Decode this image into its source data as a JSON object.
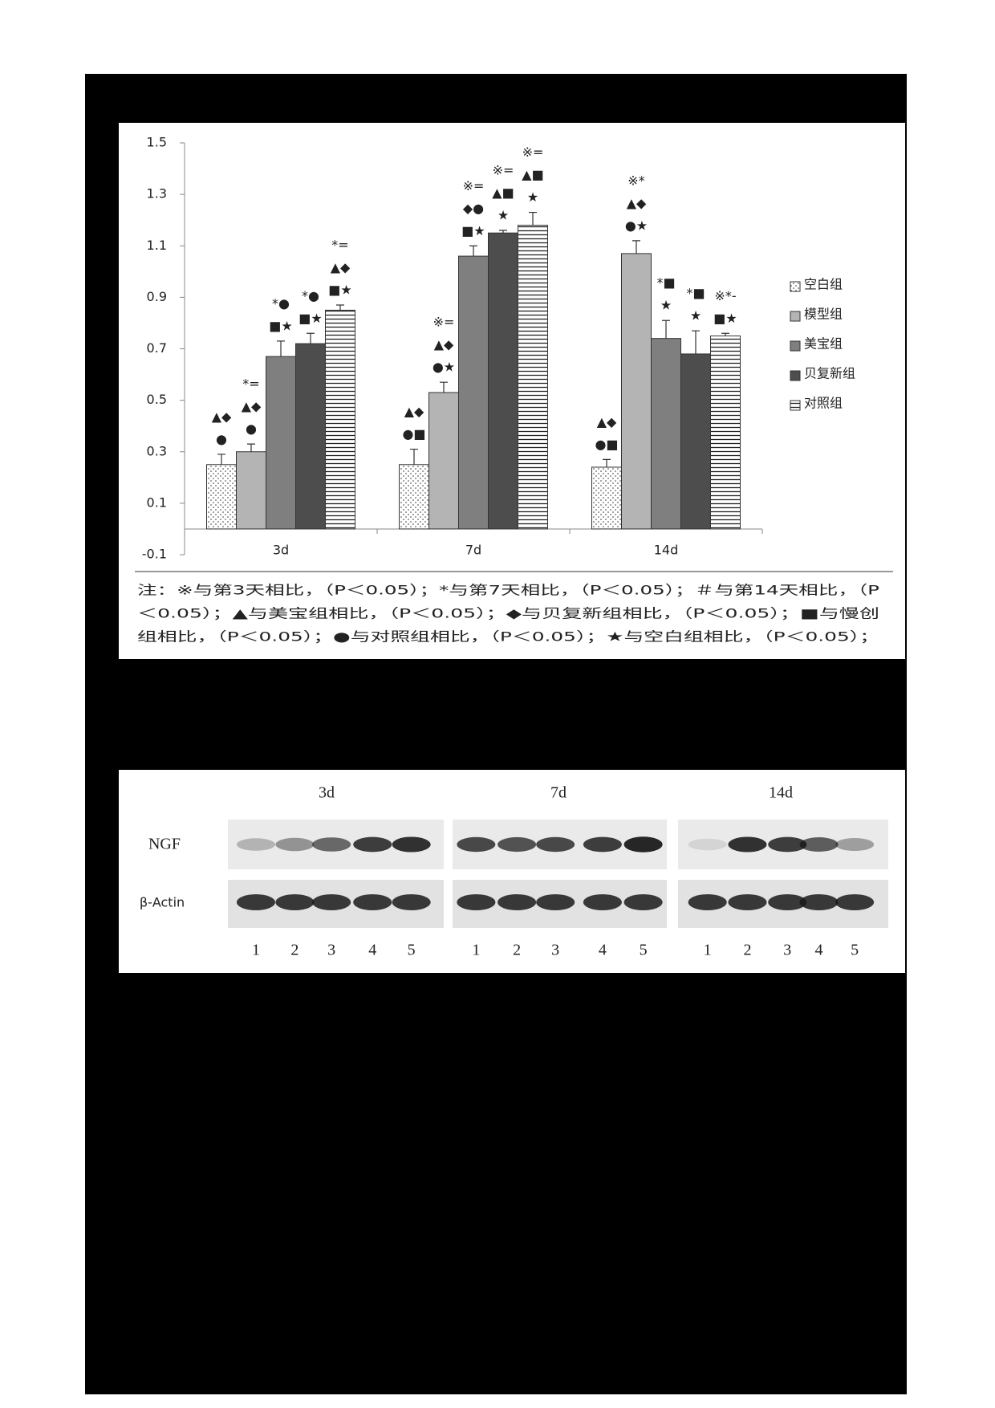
{
  "chart_data": {
    "type": "bar",
    "categories": [
      "3d",
      "7d",
      "14d"
    ],
    "ylim": [
      -0.1,
      1.5
    ],
    "yticks": [
      -0.1,
      0.1,
      0.3,
      0.5,
      0.7,
      0.9,
      1.1,
      1.3,
      1.5
    ],
    "legend": "right",
    "series": [
      {
        "name": "空白组",
        "color": "#ffffff",
        "fill_pattern": "dots",
        "values": [
          0.25,
          0.25,
          0.24
        ],
        "errors": [
          0.04,
          0.06,
          0.03
        ],
        "labels": [
          [
            "▲◆",
            "●"
          ],
          [
            "▲◆",
            "●■"
          ],
          [
            "▲◆",
            "●■"
          ]
        ]
      },
      {
        "name": "模型组",
        "color": "#b4b4b4",
        "values": [
          0.3,
          0.53,
          1.07
        ],
        "errors": [
          0.03,
          0.04,
          0.05
        ],
        "labels": [
          [
            "*=",
            "▲◆",
            "●"
          ],
          [
            "※=",
            "▲◆",
            "●★"
          ],
          [
            "※*",
            "▲◆",
            "●★"
          ]
        ]
      },
      {
        "name": "美宝组",
        "color": "#7f7f7f",
        "values": [
          0.67,
          1.06,
          0.74
        ],
        "errors": [
          0.06,
          0.04,
          0.07
        ],
        "labels": [
          [
            "*●",
            "■★"
          ],
          [
            "※=",
            "◆●",
            "■★"
          ],
          [
            "*■",
            "★"
          ]
        ]
      },
      {
        "name": "贝复新组",
        "color": "#4d4d4d",
        "values": [
          0.72,
          1.15,
          0.68
        ],
        "errors": [
          0.04,
          0.01,
          0.09
        ],
        "labels": [
          [
            "*●",
            "■★"
          ],
          [
            "※=",
            "▲■",
            "★"
          ],
          [
            "*■",
            "★"
          ]
        ]
      },
      {
        "name": "对照组",
        "color": "#ffffff",
        "fill_pattern": "hlines",
        "values": [
          0.85,
          1.18,
          0.75
        ],
        "errors": [
          0.02,
          0.05,
          0.01
        ],
        "labels": [
          [
            "*=",
            "▲◆",
            "■★"
          ],
          [
            "※=",
            "▲■",
            "★"
          ],
          [
            "※*-",
            "■★"
          ]
        ]
      }
    ],
    "note": [
      "注：※与第3天相比，（P＜0.05）；*与第7天相比，（P＜0.05）；＃与第14天相比，（P",
      "＜0.05）；▲与美宝组相比，（P＜0.05）；◆与贝复新组相比，（P＜0.05）；■与慢创",
      "组相比，（P＜0.05）；●与对照组相比，（P＜0.05）；★与空白组相比，（P＜0.05）；"
    ]
  },
  "blot": {
    "time_points": [
      "3d",
      "7d",
      "14d"
    ],
    "rows": [
      "NGF",
      "β-Actin"
    ],
    "lanes": [
      [
        "1",
        "2",
        "3",
        "4",
        "5"
      ],
      [
        "1",
        "2",
        "3",
        "4",
        "5"
      ],
      [
        "1",
        "2",
        "3",
        "4",
        "5"
      ]
    ]
  }
}
